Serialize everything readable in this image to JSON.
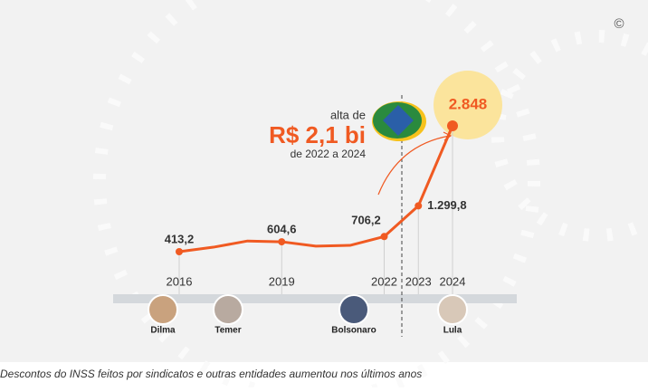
{
  "chart_data": {
    "type": "line",
    "categories": [
      "2016",
      null,
      null,
      "2019",
      null,
      null,
      "2022",
      "2023",
      "2024"
    ],
    "values": [
      413.2,
      500,
      620,
      604.6,
      520,
      535,
      706.2,
      1299.8,
      2848
    ],
    "value_labels": [
      "413,2",
      null,
      null,
      "604,6",
      null,
      null,
      "706,2",
      "1.299,8",
      "2.848"
    ],
    "color": "#f05a22",
    "annotations": {
      "intro": "alta de",
      "amount": "R$ 2,1 bi",
      "period": "de 2022 a 2024",
      "copyright": "©"
    },
    "presidents": [
      "Dilma",
      "Temer",
      "Bolsonaro",
      "Lula"
    ],
    "caption": "Descontos do INSS feitos por sindicatos e outras entidades aumentou nos últimos anos"
  }
}
